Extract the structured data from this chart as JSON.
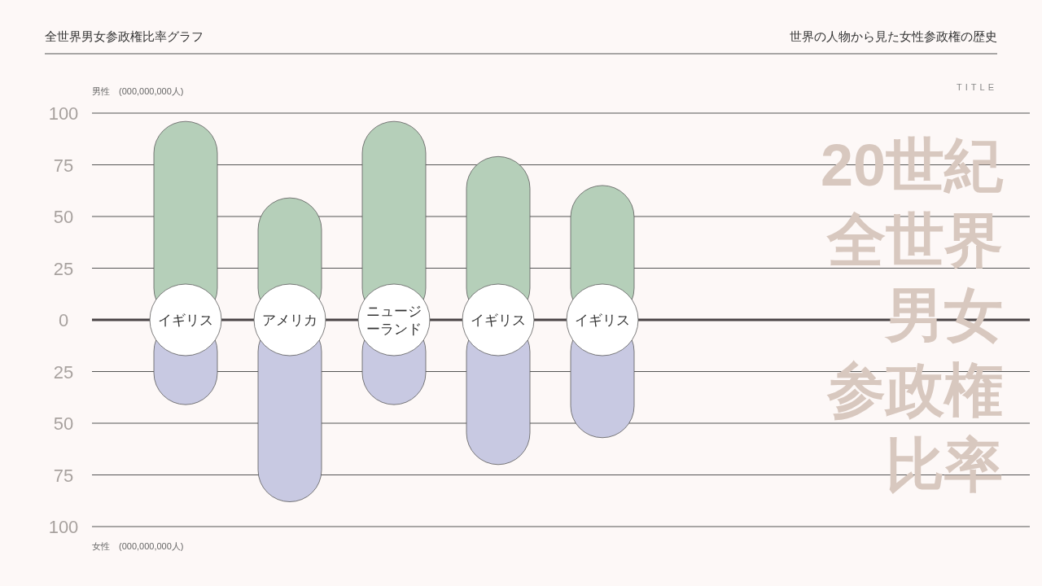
{
  "chart_data": {
    "type": "bar",
    "title": "全世界男女参政権比率グラフ",
    "subtitle": "世界の人物から見た女性参政権の歴史",
    "ylabel": "男性　(000,000,000人)",
    "annotations": [
      "TITLE",
      "20世紀",
      "全世界",
      "男女",
      "参政権",
      "比率",
      "女性　(000,000,000人)"
    ],
    "categories": [
      "イギリス",
      "アメリカ",
      "ニュージーランド",
      "イギリス",
      "イギリス"
    ],
    "stacked": true,
    "series": [
      {
        "color": "#b5cfb9",
        "values": [
          96,
          59,
          96,
          79,
          65
        ]
      },
      {
        "color": "#c8c9e2",
        "values": [
          -41,
          -88,
          -41,
          -70,
          -57
        ]
      }
    ],
    "ylim": [
      -100,
      100
    ],
    "yticks": [
      {
        "value": 100,
        "label": "100"
      },
      {
        "value": 75,
        "label": "75"
      },
      {
        "value": 50,
        "label": "50"
      },
      {
        "value": 25,
        "label": "25"
      },
      {
        "value": 0,
        "label": "0"
      },
      {
        "value": -25,
        "label": "25"
      },
      {
        "value": -50,
        "label": "50"
      },
      {
        "value": -75,
        "label": "75"
      },
      {
        "value": -100,
        "label": "100"
      }
    ],
    "grid": "y"
  }
}
